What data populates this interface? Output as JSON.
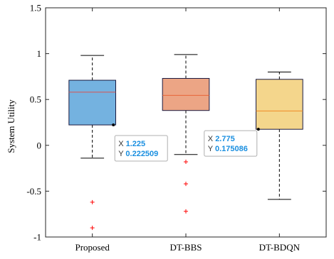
{
  "chart_data": {
    "type": "box",
    "ylabel": "System Utility",
    "xlabel": "",
    "ylim": [
      -1,
      1.5
    ],
    "yticks": [
      -1,
      -0.5,
      0,
      0.5,
      1,
      1.5
    ],
    "ytick_labels": [
      "-1",
      "-0.5",
      "0",
      "0.5",
      "1",
      "1.5"
    ],
    "grid": false,
    "series": [
      {
        "name": "Proposed",
        "q1": 0.222509,
        "median": 0.58,
        "q3": 0.71,
        "whisker_low": -0.14,
        "whisker_high": 0.98,
        "outliers": [
          -0.62,
          -0.9
        ],
        "fill": "#74b2e0",
        "median_color": "#d9534f"
      },
      {
        "name": "DT-BBS",
        "q1": 0.38,
        "median": 0.545,
        "q3": 0.73,
        "whisker_low": -0.1,
        "whisker_high": 0.99,
        "outliers": [
          -0.18,
          -0.42,
          -0.72
        ],
        "fill": "#eca585",
        "median_color": "#e8663a"
      },
      {
        "name": "DT-BDQN",
        "q1": 0.175086,
        "median": 0.375,
        "q3": 0.72,
        "whisker_low": -0.59,
        "whisker_high": 0.8,
        "outliers": [],
        "fill": "#f4d68c",
        "median_color": "#f08a24"
      }
    ],
    "datatips": [
      {
        "target": 0,
        "x_label": "X",
        "x_value": "1.225",
        "y_label": "Y",
        "y_value": "0.222509",
        "anchor_x": 1.225,
        "anchor_y": 0.222509
      },
      {
        "target": 2,
        "x_label": "X",
        "x_value": "2.775",
        "y_label": "Y",
        "y_value": "0.175086",
        "anchor_x": 2.775,
        "anchor_y": 0.175086
      }
    ],
    "colors": {
      "axis": "#262626",
      "outlier": "#ff0000",
      "box_edge": "#1a1a40",
      "tip_value": "#1a8fe0"
    }
  }
}
